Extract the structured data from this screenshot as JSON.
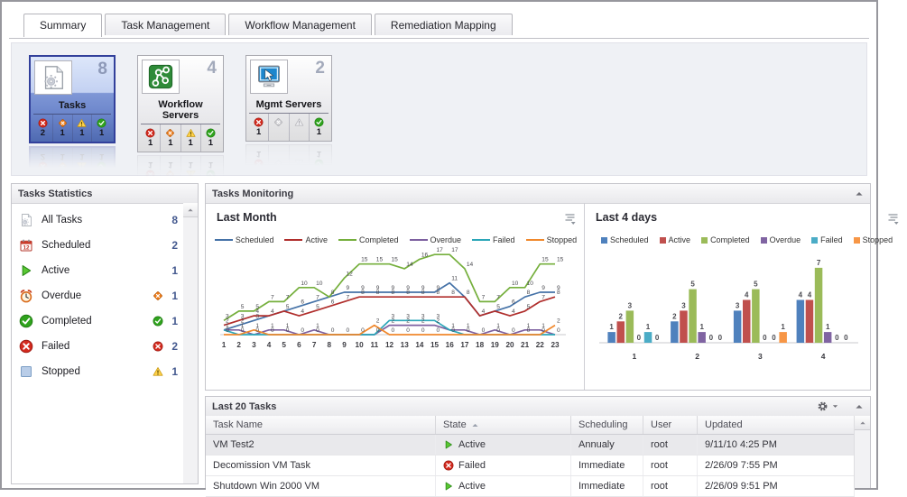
{
  "tabs": [
    {
      "label": "Summary",
      "active": true
    },
    {
      "label": "Task Management",
      "active": false
    },
    {
      "label": "Workflow Management",
      "active": false
    },
    {
      "label": "Remediation Mapping",
      "active": false
    }
  ],
  "cards": [
    {
      "label": "Tasks",
      "count": "8",
      "icon": "tasks-doc",
      "selected": true,
      "statuses": [
        {
          "icon": "failed",
          "value": "2"
        },
        {
          "icon": "overdue",
          "value": "1"
        },
        {
          "icon": "warning",
          "value": "1"
        },
        {
          "icon": "ok",
          "value": "1"
        }
      ]
    },
    {
      "label": "Workflow Servers",
      "count": "4",
      "icon": "workflow",
      "selected": false,
      "statuses": [
        {
          "icon": "failed",
          "value": "1"
        },
        {
          "icon": "overdue",
          "value": "1"
        },
        {
          "icon": "warning",
          "value": "1"
        },
        {
          "icon": "ok",
          "value": "1"
        }
      ]
    },
    {
      "label": "Mgmt Servers",
      "count": "2",
      "icon": "mgmt",
      "selected": false,
      "statuses": [
        {
          "icon": "failed",
          "value": "1"
        },
        {
          "icon": "diamond-disabled",
          "value": ""
        },
        {
          "icon": "warning-disabled",
          "value": ""
        },
        {
          "icon": "ok",
          "value": "1"
        }
      ]
    }
  ],
  "stats_panel": {
    "title": "Tasks Statistics",
    "items": [
      {
        "icon": "tasks-doc",
        "label": "All Tasks",
        "badge": "",
        "count": "8"
      },
      {
        "icon": "calendar",
        "label": "Scheduled",
        "badge": "",
        "count": "2"
      },
      {
        "icon": "play",
        "label": "Active",
        "badge": "",
        "count": "1"
      },
      {
        "icon": "alarm",
        "label": "Overdue",
        "badge": "overdue",
        "count": "1"
      },
      {
        "icon": "ok",
        "label": "Completed",
        "badge": "ok",
        "count": "1"
      },
      {
        "icon": "failed",
        "label": "Failed",
        "badge": "failed",
        "count": "2"
      },
      {
        "icon": "stopped",
        "label": "Stopped",
        "badge": "warning",
        "count": "1"
      }
    ]
  },
  "monitoring_panel": {
    "title": "Tasks Monitoring"
  },
  "chart_data": [
    {
      "type": "line",
      "title": "Last Month",
      "x": [
        1,
        2,
        3,
        4,
        5,
        6,
        7,
        8,
        9,
        10,
        11,
        12,
        13,
        14,
        15,
        16,
        17,
        18,
        19,
        20,
        21,
        22,
        23
      ],
      "xlabel": "",
      "ylabel": "",
      "ylim": [
        0,
        18
      ],
      "grid": false,
      "legend_position": "top",
      "series": [
        {
          "name": "Scheduled",
          "color": "#4572a7",
          "values": [
            1,
            2,
            3,
            4,
            5,
            6,
            7,
            8,
            9,
            9,
            9,
            9,
            9,
            9,
            9,
            11,
            8,
            4,
            5,
            6,
            8,
            9,
            9
          ]
        },
        {
          "name": "Active",
          "color": "#b02e2c",
          "values": [
            2,
            3,
            4,
            4,
            5,
            4,
            5,
            6,
            7,
            8,
            8,
            8,
            8,
            8,
            8,
            8,
            8,
            4,
            5,
            4,
            5,
            7,
            8
          ]
        },
        {
          "name": "Completed",
          "color": "#75af3c",
          "values": [
            3,
            5,
            5,
            7,
            7,
            10,
            10,
            8,
            12,
            15,
            15,
            15,
            14,
            16,
            17,
            17,
            14,
            7,
            7,
            10,
            10,
            15,
            15
          ]
        },
        {
          "name": "Overdue",
          "color": "#7d60a0",
          "values": [
            1,
            1,
            0,
            1,
            1,
            0,
            1,
            0,
            0,
            0,
            0,
            2,
            2,
            2,
            2,
            1,
            1,
            0,
            1,
            0,
            1,
            1,
            0
          ]
        },
        {
          "name": "Failed",
          "color": "#2ba6b8",
          "values": [
            1,
            0,
            0,
            0,
            0,
            0,
            0,
            0,
            0,
            0,
            0,
            3,
            3,
            3,
            3,
            1,
            0,
            0,
            0,
            0,
            0,
            0,
            0
          ]
        },
        {
          "name": "Stopped",
          "color": "#f0882c",
          "values": [
            0,
            0,
            1,
            0,
            0,
            0,
            0,
            0,
            0,
            0,
            2,
            0,
            0,
            0,
            0,
            0,
            0,
            0,
            0,
            0,
            0,
            0,
            2
          ]
        }
      ]
    },
    {
      "type": "bar",
      "title": "Last 4 days",
      "categories": [
        "1",
        "2",
        "3",
        "4"
      ],
      "xlabel": "",
      "ylabel": "",
      "ylim": [
        0,
        8
      ],
      "grid": false,
      "legend_position": "top",
      "series": [
        {
          "name": "Scheduled",
          "color": "#4f81bd",
          "values": [
            1,
            2,
            3,
            4
          ]
        },
        {
          "name": "Active",
          "color": "#c0504d",
          "values": [
            2,
            3,
            4,
            4
          ]
        },
        {
          "name": "Completed",
          "color": "#9bbb59",
          "values": [
            3,
            5,
            5,
            7
          ]
        },
        {
          "name": "Overdue",
          "color": "#8064a2",
          "values": [
            0,
            1,
            0,
            1
          ]
        },
        {
          "name": "Failed",
          "color": "#4bacc6",
          "values": [
            1,
            0,
            0,
            0
          ]
        },
        {
          "name": "Stopped",
          "color": "#f79646",
          "values": [
            0,
            0,
            1,
            0
          ]
        }
      ]
    }
  ],
  "table_panel": {
    "title": "Last 20 Tasks",
    "columns": [
      "Task Name",
      "State",
      "Scheduling",
      "User",
      "Updated"
    ],
    "sort_column": "State",
    "rows": [
      {
        "name": "VM Test2",
        "state": "Active",
        "state_icon": "play",
        "scheduling": "Annualy",
        "user": "root",
        "updated": "9/11/10 4:25 PM",
        "selected": true
      },
      {
        "name": "Decomission VM Task",
        "state": "Failed",
        "state_icon": "failed",
        "scheduling": "Immediate",
        "user": "root",
        "updated": "2/26/09 7:55 PM",
        "selected": false
      },
      {
        "name": "Shutdown Win 2000 VM",
        "state": "Active",
        "state_icon": "play",
        "scheduling": "Immediate",
        "user": "root",
        "updated": "2/26/09 9:51 PM",
        "selected": false
      }
    ]
  }
}
